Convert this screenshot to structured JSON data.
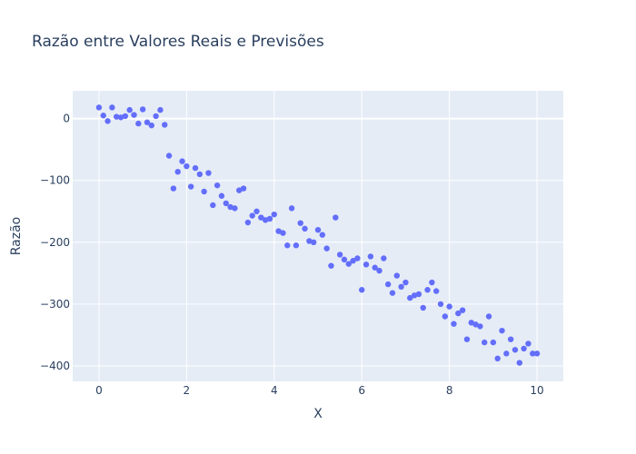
{
  "chart_data": {
    "type": "scatter",
    "title": "Razão entre Valores Reais e Previsões",
    "xlabel": "X",
    "ylabel": "Razão",
    "xlim": [
      -0.6,
      10.6
    ],
    "ylim": [
      -425,
      45
    ],
    "xticks": [
      0,
      2,
      4,
      6,
      8,
      10
    ],
    "xtick_labels": [
      "0",
      "2",
      "4",
      "6",
      "8",
      "10"
    ],
    "yticks": [
      -400,
      -300,
      -200,
      -100,
      0
    ],
    "ytick_labels": [
      "−400",
      "−300",
      "−200",
      "−100",
      "0"
    ],
    "grid": true,
    "colors": {
      "plot_bg": "#e5ecf6",
      "grid": "#ffffff",
      "marker": "#636efa",
      "text": "#2a3f5f"
    },
    "x": [
      0.0,
      0.1,
      0.2,
      0.3,
      0.4,
      0.5,
      0.6,
      0.7,
      0.8,
      0.9,
      1.0,
      1.1,
      1.2,
      1.3,
      1.4,
      1.5,
      1.6,
      1.7,
      1.8,
      1.9,
      2.0,
      2.1,
      2.2,
      2.3,
      2.4,
      2.5,
      2.6,
      2.7,
      2.8,
      2.9,
      3.0,
      3.1,
      3.2,
      3.3,
      3.4,
      3.5,
      3.6,
      3.7,
      3.8,
      3.9,
      4.0,
      4.1,
      4.2,
      4.3,
      4.4,
      4.5,
      4.6,
      4.7,
      4.8,
      4.9,
      5.0,
      5.1,
      5.2,
      5.3,
      5.4,
      5.5,
      5.6,
      5.7,
      5.8,
      5.9,
      6.0,
      6.1,
      6.2,
      6.3,
      6.4,
      6.5,
      6.6,
      6.7,
      6.8,
      6.9,
      7.0,
      7.1,
      7.2,
      7.3,
      7.4,
      7.5,
      7.6,
      7.7,
      7.8,
      7.9,
      8.0,
      8.1,
      8.2,
      8.3,
      8.4,
      8.5,
      8.6,
      8.7,
      8.8,
      8.9,
      9.0,
      9.1,
      9.2,
      9.3,
      9.4,
      9.5,
      9.6,
      9.7,
      9.8,
      9.9,
      10.0
    ],
    "y": [
      18,
      5,
      -4,
      18,
      3,
      2,
      4,
      14,
      6,
      -8,
      15,
      -6,
      -11,
      4,
      14,
      -10,
      -60,
      -113,
      -86,
      -69,
      -77,
      -110,
      -80,
      -90,
      -118,
      -88,
      -140,
      -108,
      -125,
      -137,
      -143,
      -145,
      -116,
      -113,
      -168,
      -157,
      -150,
      -160,
      -164,
      -162,
      -155,
      -182,
      -185,
      -205,
      -145,
      -205,
      -169,
      -178,
      -198,
      -200,
      -180,
      -188,
      -210,
      -238,
      -160,
      -220,
      -228,
      -235,
      -230,
      -226,
      -277,
      -236,
      -223,
      -241,
      -246,
      -226,
      -268,
      -282,
      -254,
      -272,
      -265,
      -290,
      -286,
      -284,
      -306,
      -277,
      -265,
      -279,
      -300,
      -320,
      -304,
      -332,
      -315,
      -310,
      -357,
      -330,
      -333,
      -336,
      -362,
      -320,
      -362,
      -388,
      -343,
      -380,
      -357,
      -374,
      -395,
      -372,
      -364,
      -380,
      -380
    ]
  }
}
